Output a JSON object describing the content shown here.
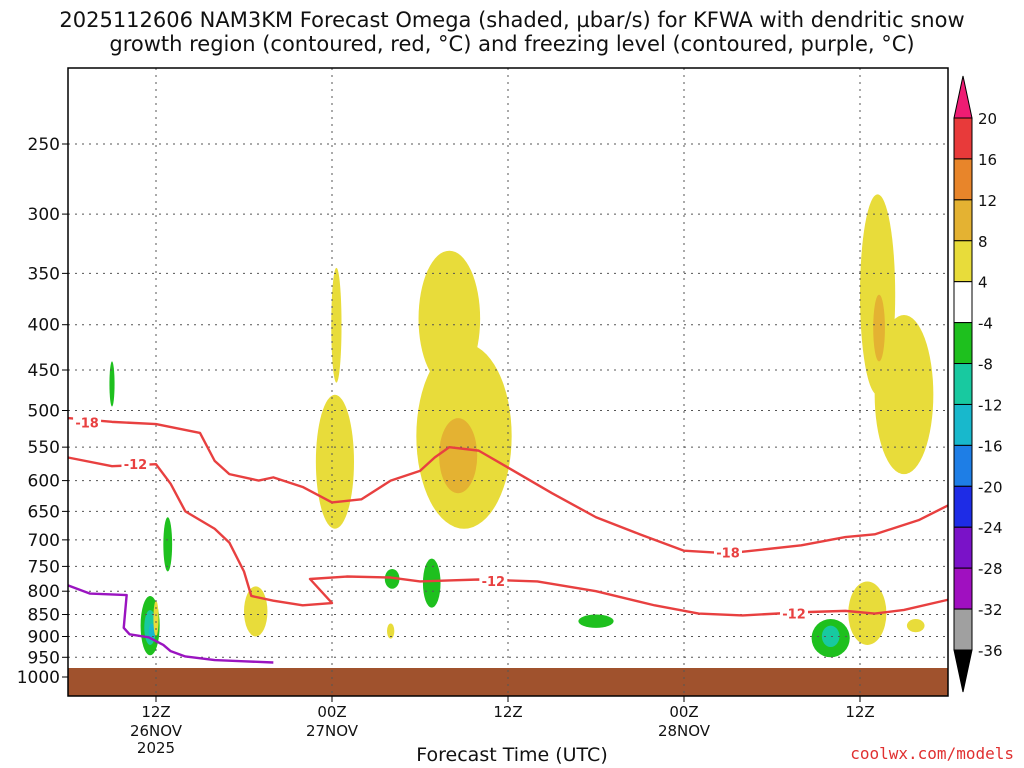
{
  "title_line1": "2025112606 NAM3KM Forecast Omega (shaded, µbar/s) for KFWA with dendritic snow",
  "title_line2": "growth region (contoured, red, °C) and freezing level (contoured, purple, °C)",
  "credit": "coolwx.com/models",
  "chart_data": {
    "type": "time-height cross section",
    "xlabel": "Forecast Time (UTC)",
    "x_ticks": [
      {
        "hour": 6,
        "label": "12Z",
        "sub": [
          "26NOV",
          "2025"
        ]
      },
      {
        "hour": 18,
        "label": "00Z",
        "sub": [
          "27NOV"
        ]
      },
      {
        "hour": 30,
        "label": "12Z",
        "sub": []
      },
      {
        "hour": 42,
        "label": "00Z",
        "sub": [
          "28NOV"
        ]
      },
      {
        "hour": 54,
        "label": "12Z",
        "sub": []
      }
    ],
    "x_range_hours": [
      0,
      60
    ],
    "y_axis": {
      "scale": "log-pressure",
      "range_hPa": [
        1000,
        200
      ],
      "tick_labels": [
        250,
        300,
        350,
        400,
        450,
        500,
        550,
        600,
        650,
        700,
        750,
        800,
        850,
        900,
        950,
        1000
      ]
    },
    "grid": true,
    "colorbar": {
      "unit": "µbar/s",
      "levels": [
        20,
        16,
        12,
        8,
        4,
        -4,
        -8,
        -12,
        -16,
        -20,
        -24,
        -28,
        -32,
        -36
      ],
      "colors": [
        "#ee1c73",
        "#e83a3a",
        "#e8852a",
        "#e4b232",
        "#e8dc3a",
        "#ffffff",
        "#1ec01e",
        "#18c9a0",
        "#18b8cc",
        "#1e7ee6",
        "#1e2ce6",
        "#7a12c8",
        "#a010c0",
        "#a0a0a0",
        "#000000"
      ]
    },
    "contours": [
      {
        "name": "dendritic -18",
        "label": "-18",
        "color": "#e84040",
        "points": [
          [
            0,
            510
          ],
          [
            3,
            515
          ],
          [
            6,
            518
          ],
          [
            9,
            530
          ],
          [
            10,
            570
          ],
          [
            11,
            590
          ],
          [
            13,
            600
          ],
          [
            14,
            595
          ],
          [
            16,
            610
          ],
          [
            18,
            635
          ],
          [
            20,
            630
          ],
          [
            22,
            600
          ],
          [
            24,
            585
          ],
          [
            25,
            565
          ],
          [
            26,
            550
          ],
          [
            28,
            555
          ],
          [
            30,
            580
          ],
          [
            33,
            620
          ],
          [
            36,
            660
          ],
          [
            39,
            690
          ],
          [
            42,
            720
          ],
          [
            45,
            725
          ],
          [
            50,
            710
          ],
          [
            53,
            695
          ],
          [
            55,
            690
          ],
          [
            58,
            665
          ],
          [
            60,
            640
          ]
        ]
      },
      {
        "name": "dendritic -12",
        "label": "-12",
        "color": "#e84040",
        "points": [
          [
            0,
            565
          ],
          [
            3,
            578
          ],
          [
            6,
            575
          ],
          [
            7,
            605
          ],
          [
            8,
            650
          ],
          [
            10,
            680
          ],
          [
            11,
            705
          ],
          [
            12,
            760
          ],
          [
            12.5,
            810
          ],
          [
            14,
            820
          ],
          [
            16,
            830
          ],
          [
            18,
            825
          ],
          [
            16.5,
            775
          ],
          [
            19,
            770
          ],
          [
            22,
            772
          ],
          [
            24,
            780
          ],
          [
            26,
            778
          ],
          [
            28,
            776
          ],
          [
            32,
            780
          ],
          [
            36,
            800
          ],
          [
            40,
            830
          ],
          [
            43,
            848
          ],
          [
            46,
            852
          ],
          [
            50,
            845
          ],
          [
            53,
            842
          ],
          [
            55,
            848
          ],
          [
            57,
            840
          ],
          [
            60,
            818
          ]
        ]
      },
      {
        "name": "freezing level",
        "label": "",
        "color": "#9a14c0",
        "points": [
          [
            0,
            788
          ],
          [
            1.5,
            805
          ],
          [
            4,
            808
          ],
          [
            3.8,
            880
          ],
          [
            4.2,
            895
          ],
          [
            5.5,
            902
          ],
          [
            6.5,
            920
          ],
          [
            7,
            935
          ],
          [
            8,
            948
          ],
          [
            10,
            957
          ],
          [
            12,
            960
          ],
          [
            14,
            963
          ]
        ]
      }
    ],
    "omega_features": [
      {
        "level": 4,
        "hPa_top": 440,
        "hPa_bot": 495,
        "hour_start": 2.7,
        "hour_end": 3.0,
        "value_band": "-4 to -8"
      },
      {
        "level": 4,
        "hPa_top": 660,
        "hPa_bot": 760,
        "hour_start": 6.6,
        "hour_end": 7.1,
        "value_band": "-4 to -8"
      },
      {
        "level": 4,
        "hPa_top": 810,
        "hPa_bot": 945,
        "hour_start": 5.0,
        "hour_end": 6.5,
        "value_band": "-4 to -24"
      },
      {
        "level": 4,
        "hPa_top": 340,
        "hPa_bot": 630,
        "hour_start": 16,
        "hour_end": 20,
        "value_band": "4 to 8"
      },
      {
        "level": 4,
        "hPa_top": 320,
        "hPa_bot": 680,
        "hour_start": 24,
        "hour_end": 31,
        "value_band": "4 to 12"
      },
      {
        "level": 4,
        "hPa_top": 290,
        "hPa_bot": 595,
        "hour_start": 54,
        "hour_end": 59.8,
        "value_band": "4 to 12"
      }
    ]
  }
}
